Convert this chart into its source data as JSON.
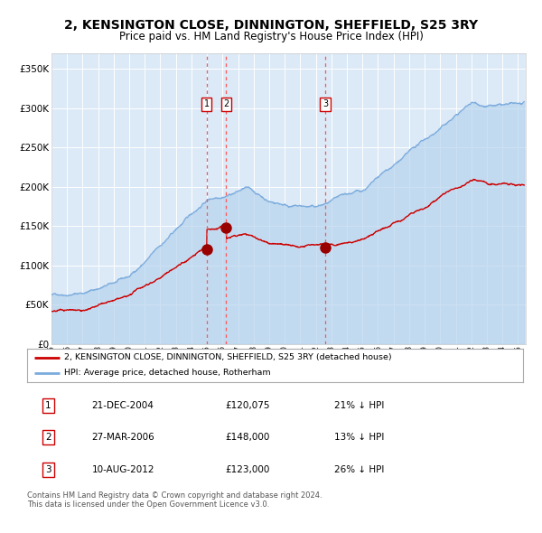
{
  "title": "2, KENSINGTON CLOSE, DINNINGTON, SHEFFIELD, S25 3RY",
  "subtitle": "Price paid vs. HM Land Registry's House Price Index (HPI)",
  "title_fontsize": 10,
  "subtitle_fontsize": 8.5,
  "background_color": "#ffffff",
  "plot_bg_color": "#dce9f7",
  "grid_color": "#ffffff",
  "hpi_color": "#7aabdd",
  "hpi_fill_color": "#b8d4ee",
  "price_color": "#cc0000",
  "marker_color": "#990000",
  "vline_color": "#ff5555",
  "sale1_date_x": 2004.97,
  "sale2_date_x": 2006.24,
  "sale3_date_x": 2012.61,
  "sale1_price": 120075,
  "sale2_price": 148000,
  "sale3_price": 123000,
  "legend_label_red": "2, KENSINGTON CLOSE, DINNINGTON, SHEFFIELD, S25 3RY (detached house)",
  "legend_label_blue": "HPI: Average price, detached house, Rotherham",
  "table_rows": [
    [
      "1",
      "21-DEC-2004",
      "£120,075",
      "21% ↓ HPI"
    ],
    [
      "2",
      "27-MAR-2006",
      "£148,000",
      "13% ↓ HPI"
    ],
    [
      "3",
      "10-AUG-2012",
      "£123,000",
      "26% ↓ HPI"
    ]
  ],
  "footnote": "Contains HM Land Registry data © Crown copyright and database right 2024.\nThis data is licensed under the Open Government Licence v3.0.",
  "ylim": [
    0,
    370000
  ],
  "yticks": [
    0,
    50000,
    100000,
    150000,
    200000,
    250000,
    300000,
    350000
  ],
  "xlim_start": 1995.0,
  "xlim_end": 2025.5
}
